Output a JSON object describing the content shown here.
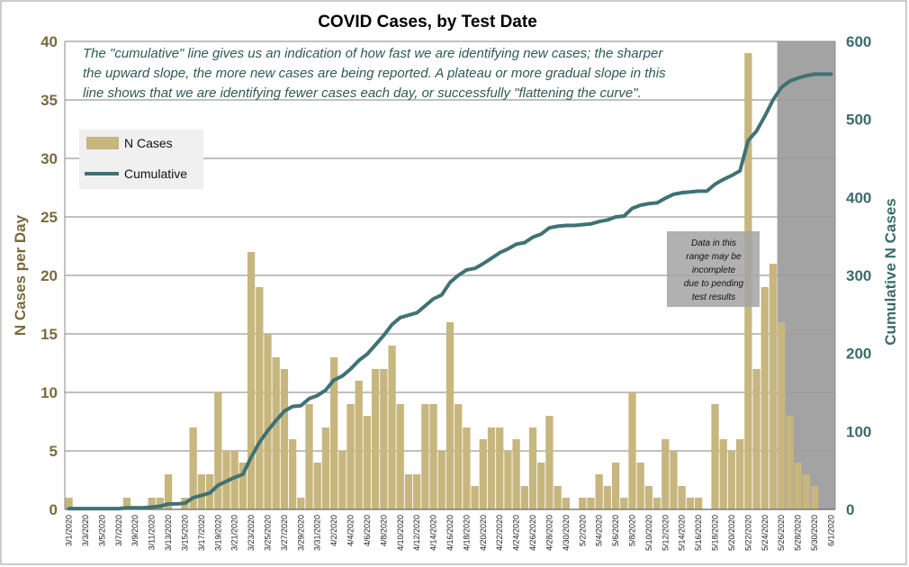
{
  "chart_data": {
    "type": "bar",
    "title": "COVID Cases, by Test Date",
    "ylabel": "N Cases per Day",
    "y2label": "Cumulative N Cases",
    "ylim": [
      0,
      40
    ],
    "y2lim": [
      0,
      600
    ],
    "yticks": [
      0,
      5,
      10,
      15,
      20,
      25,
      30,
      35,
      40
    ],
    "y2ticks": [
      0,
      100,
      200,
      300,
      400,
      500,
      600
    ],
    "grid": true,
    "categories": [
      "3/1/2020",
      "3/2/2020",
      "3/3/2020",
      "3/4/2020",
      "3/5/2020",
      "3/6/2020",
      "3/7/2020",
      "3/8/2020",
      "3/9/2020",
      "3/10/2020",
      "3/11/2020",
      "3/12/2020",
      "3/13/2020",
      "3/14/2020",
      "3/15/2020",
      "3/16/2020",
      "3/17/2020",
      "3/18/2020",
      "3/19/2020",
      "3/20/2020",
      "3/21/2020",
      "3/22/2020",
      "3/23/2020",
      "3/24/2020",
      "3/25/2020",
      "3/26/2020",
      "3/27/2020",
      "3/28/2020",
      "3/29/2020",
      "3/30/2020",
      "3/31/2020",
      "4/1/2020",
      "4/2/2020",
      "4/3/2020",
      "4/4/2020",
      "4/5/2020",
      "4/6/2020",
      "4/7/2020",
      "4/8/2020",
      "4/9/2020",
      "4/10/2020",
      "4/11/2020",
      "4/12/2020",
      "4/13/2020",
      "4/14/2020",
      "4/15/2020",
      "4/16/2020",
      "4/17/2020",
      "4/18/2020",
      "4/19/2020",
      "4/20/2020",
      "4/21/2020",
      "4/22/2020",
      "4/23/2020",
      "4/24/2020",
      "4/25/2020",
      "4/26/2020",
      "4/27/2020",
      "4/28/2020",
      "4/29/2020",
      "4/30/2020",
      "5/1/2020",
      "5/2/2020",
      "5/3/2020",
      "5/4/2020",
      "5/5/2020",
      "5/6/2020",
      "5/7/2020",
      "5/8/2020",
      "5/9/2020",
      "5/10/2020",
      "5/11/2020",
      "5/12/2020",
      "5/13/2020",
      "5/14/2020",
      "5/15/2020",
      "5/16/2020",
      "5/17/2020",
      "5/18/2020",
      "5/19/2020",
      "5/20/2020",
      "5/21/2020",
      "5/22/2020",
      "5/23/2020",
      "5/24/2020",
      "5/25/2020",
      "5/26/2020",
      "5/27/2020",
      "5/28/2020",
      "5/29/2020",
      "5/30/2020",
      "5/31/2020",
      "6/1/2020"
    ],
    "tick_labels": [
      "3/1/2020",
      "3/3/2020",
      "3/5/2020",
      "3/7/2020",
      "3/9/2020",
      "3/11/2020",
      "3/13/2020",
      "3/15/2020",
      "3/17/2020",
      "3/19/2020",
      "3/21/2020",
      "3/23/2020",
      "3/25/2020",
      "3/27/2020",
      "3/29/2020",
      "3/31/2020",
      "4/2/2020",
      "4/4/2020",
      "4/6/2020",
      "4/8/2020",
      "4/10/2020",
      "4/12/2020",
      "4/14/2020",
      "4/16/2020",
      "4/18/2020",
      "4/20/2020",
      "4/22/2020",
      "4/24/2020",
      "4/26/2020",
      "4/28/2020",
      "4/30/2020",
      "5/2/2020",
      "5/4/2020",
      "5/6/2020",
      "5/8/2020",
      "5/10/2020",
      "5/12/2020",
      "5/14/2020",
      "5/16/2020",
      "5/18/2020",
      "5/20/2020",
      "5/22/2020",
      "5/24/2020",
      "5/26/2020",
      "5/28/2020",
      "5/30/2020",
      "6/1/2020"
    ],
    "series": [
      {
        "name": "N Cases",
        "type": "bar",
        "axis": "left",
        "color": "#c7b67e",
        "values": [
          1,
          0,
          0,
          0,
          0,
          0,
          0,
          1,
          0,
          0,
          1,
          1,
          3,
          0,
          1,
          7,
          3,
          3,
          10,
          5,
          5,
          4,
          22,
          19,
          15,
          13,
          12,
          6,
          1,
          9,
          4,
          7,
          13,
          5,
          9,
          11,
          8,
          12,
          12,
          14,
          9,
          3,
          3,
          9,
          9,
          5,
          16,
          9,
          7,
          2,
          6,
          7,
          7,
          5,
          6,
          2,
          7,
          4,
          8,
          2,
          1,
          0,
          1,
          1,
          3,
          2,
          4,
          1,
          10,
          4,
          2,
          1,
          6,
          5,
          2,
          1,
          1,
          0,
          9,
          6,
          5,
          6,
          39,
          12,
          19,
          21,
          16,
          8,
          4,
          3,
          2,
          0,
          0
        ]
      },
      {
        "name": "Cumulative",
        "type": "line",
        "axis": "right",
        "color": "#3f7274",
        "values": [
          1,
          1,
          1,
          1,
          1,
          1,
          1,
          2,
          2,
          2,
          3,
          4,
          7,
          7,
          8,
          15,
          18,
          21,
          31,
          36,
          41,
          45,
          67,
          86,
          101,
          114,
          126,
          132,
          133,
          142,
          146,
          153,
          166,
          171,
          180,
          191,
          199,
          211,
          223,
          237,
          246,
          249,
          252,
          261,
          270,
          275,
          291,
          300,
          307,
          309,
          315,
          322,
          329,
          334,
          340,
          342,
          349,
          353,
          361,
          363,
          364,
          364,
          365,
          366,
          369,
          371,
          375,
          376,
          386,
          390,
          392,
          393,
          399,
          404,
          406,
          407,
          408,
          408,
          417,
          423,
          428,
          434,
          473,
          485,
          504,
          525,
          541,
          549,
          553,
          556,
          558,
          558,
          558
        ]
      }
    ],
    "legend": {
      "position": "upper-left",
      "entries": [
        "N Cases",
        "Cumulative"
      ]
    },
    "annotations": {
      "note": [
        "The \"cumulative\" line gives  us an indication of how fast we are identifying new cases; the sharper",
        "the upward slope, the more new cases are being reported. A plateau or more gradual slope in this",
        "line shows that we are identifying fewer cases each day, or successfully \"flattening the curve\"."
      ],
      "incomplete_box": [
        "Data in this",
        "range  may be",
        "incomplete",
        "due to pending",
        "test results"
      ],
      "shaded_from": "5/26/2020",
      "shaded_to": "6/1/2020"
    }
  }
}
